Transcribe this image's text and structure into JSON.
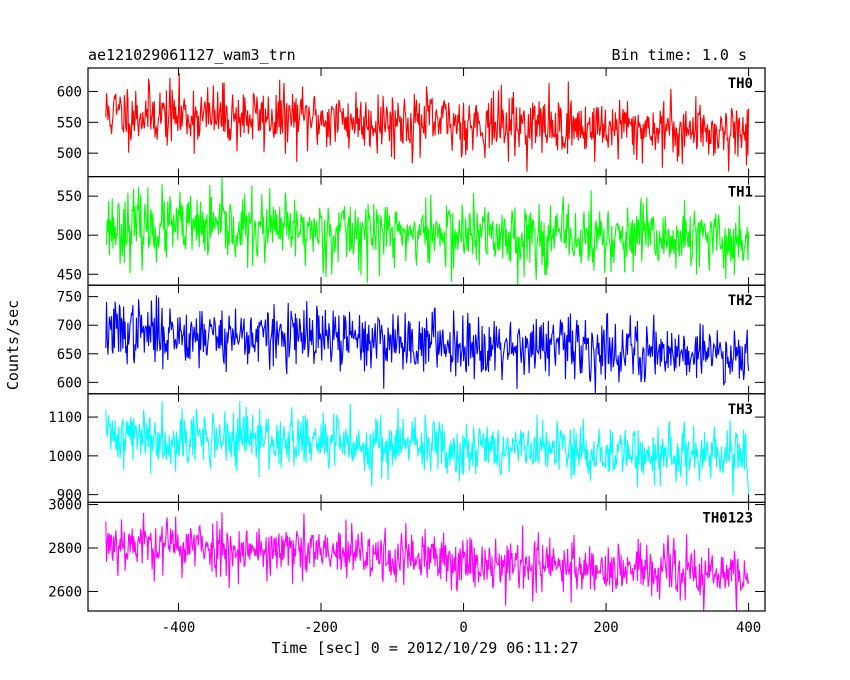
{
  "title_left": "ae121029061127_wam3_trn",
  "title_right": "Bin time: 1.0 s",
  "xlabel": "Time [sec] 0 = 2012/10/29 06:11:27",
  "ylabel": "Counts/sec",
  "chart_data": {
    "type": "line",
    "x_range": [
      -502,
      400
    ],
    "x_ticks": [
      -400,
      -200,
      0,
      200,
      400
    ],
    "bin_time_s": 1.0,
    "panels": [
      {
        "name": "TH0",
        "color": "#ff0000",
        "ylim": [
          462,
          638
        ],
        "y_ticks": [
          500,
          550,
          600
        ],
        "level": [
          565,
          535
        ],
        "noise_sd": 25,
        "seed": 11
      },
      {
        "name": "TH1",
        "color": "#00ff00",
        "ylim": [
          436,
          575
        ],
        "y_ticks": [
          450,
          500,
          550
        ],
        "level": [
          512,
          492
        ],
        "noise_sd": 22,
        "seed": 23
      },
      {
        "name": "TH2",
        "color": "#0000ff",
        "ylim": [
          580,
          770
        ],
        "y_ticks": [
          600,
          650,
          700,
          750
        ],
        "level": [
          690,
          650
        ],
        "noise_sd": 27,
        "seed": 37
      },
      {
        "name": "TH3",
        "color": "#00ffff",
        "ylim": [
          880,
          1160
        ],
        "y_ticks": [
          900,
          1000,
          1100
        ],
        "level": [
          1055,
          995
        ],
        "noise_sd": 38,
        "seed": 41
      },
      {
        "name": "TH0123",
        "color": "#ff00ff",
        "ylim": [
          2510,
          3010
        ],
        "y_ticks": [
          2600,
          2800,
          3000
        ],
        "level": [
          2830,
          2670
        ],
        "noise_sd": 65,
        "seed": 53
      }
    ]
  }
}
